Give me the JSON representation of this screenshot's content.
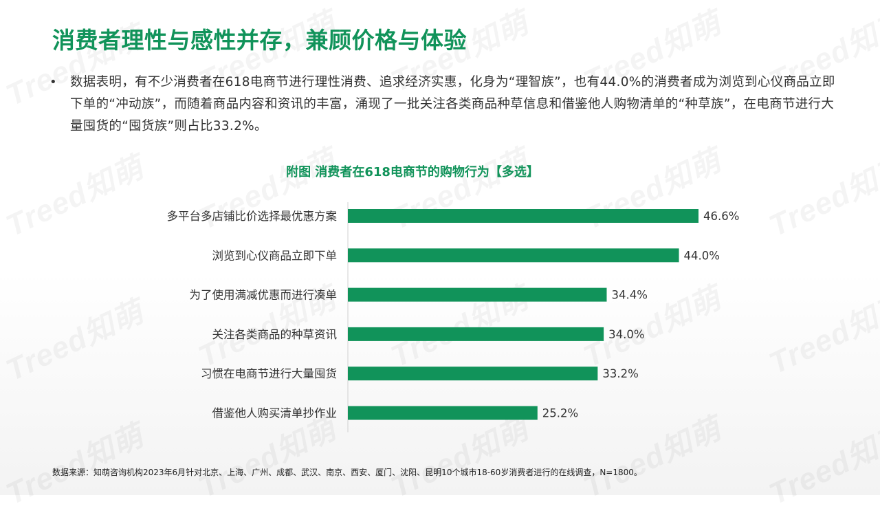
{
  "watermark": "Treed知萌",
  "title": "消费者理性与感性并存，兼顾价格与体验",
  "bullet": "数据表明，有不少消费者在618电商节进行理性消费、追求经济实惠，化身为“理智族”，也有44.0%的消费者成为浏览到心仪商品立即下单的“冲动族”，而随着商品内容和资讯的丰富，涌现了一批关注各类商品种草信息和借鉴他人购物清单的“种草族”，在电商节进行大量囤货的“囤货族”则占比33.2%。",
  "bullet_symbol": "•",
  "source": "数据来源：知萌咨询机构2023年6月针对北京、上海、广州、成都、武汉、南京、西安、厦门、沈阳、昆明10个城市18-60岁消费者进行的在线调查，N=1800。",
  "colors": {
    "accent": "#11935a",
    "bar": "#11935a"
  },
  "chart_data": {
    "type": "bar",
    "orientation": "horizontal",
    "title": "附图 消费者在618电商节的购物行为【多选】",
    "categories": [
      "多平台多店铺比价选择最优惠方案",
      "浏览到心仪商品立即下单",
      "为了使用满减优惠而进行凑单",
      "关注各类商品的种草资讯",
      "习惯在电商节进行大量囤货",
      "借鉴他人购买清单抄作业"
    ],
    "values": [
      46.6,
      44.0,
      34.4,
      34.0,
      33.2,
      25.2
    ],
    "value_labels": [
      "46.6%",
      "44.0%",
      "34.4%",
      "34.0%",
      "33.2%",
      "25.2%"
    ],
    "unit": "%",
    "xlim": [
      0,
      50
    ],
    "grid": false,
    "legend": "none"
  }
}
